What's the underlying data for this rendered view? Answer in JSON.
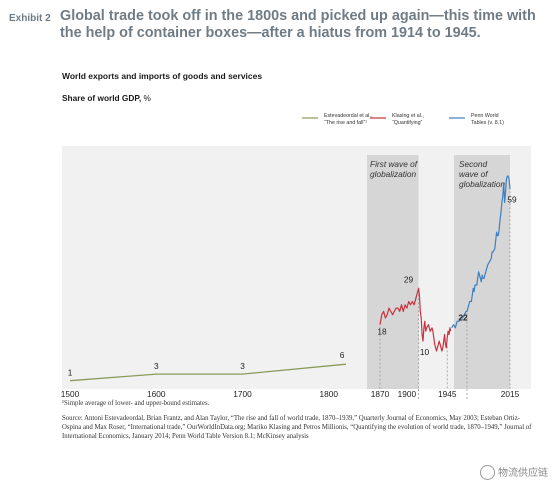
{
  "exhibit_label": "Exhibit 2",
  "headline": "Global trade took off in the 1800s and picked up again—this time with the help of container boxes—after a hiatus from 1914 to 1945.",
  "subhead": "World exports and imports of goods and services",
  "unit_label": "Share of world GDP,",
  "unit_suffix": "%",
  "footnote": "¹Simple average of lower- and upper-bound estimates.",
  "source": "Source: Antoni Estevadeordal, Brian Frantz, and Alan Taylor, “The rise and fall of world trade, 1870–1939,” Quarterly Journal of Economics, May 2003; Esteban Ortiz-Ospina and Max Roser, “International trade,” OurWorldInData.org; Mariko Klasing and Petros Millionis, “Quantifying the evolution of world trade, 1870–1949,” Journal of International Economics, January 2014; Penn World Table Version 8.1; McKinsey analysis",
  "watermark": "物流供应链",
  "colors": {
    "estevadeordal": "#8a9a5b",
    "klasing": "#c8323c",
    "penn": "#3f7fc1",
    "band": "#d6d6d6",
    "plot_bg": "#f1f1f1",
    "axis_text": "#222222",
    "title_gray": "#6f7c86"
  },
  "chart_data": {
    "type": "line",
    "xlabel": "",
    "ylabel": "",
    "x_ticks": [
      "1500",
      "1600",
      "1700",
      "1800",
      "1870",
      "1900",
      "1913",
      "1945",
      "1967",
      "2015"
    ],
    "highlight_tick": "1967",
    "shaded_periods": [
      {
        "label": "First wave of globalization",
        "start": 1870,
        "end": 1913
      },
      {
        "label": "Second wave of globalization",
        "start": 1967,
        "end": 2015
      }
    ],
    "legend": [
      {
        "series": "estevadeordal",
        "label": "Estevadeordal et al., “The rise and fall”¹"
      },
      {
        "series": "klasing",
        "label": "Klasing et al., “Quantifying”"
      },
      {
        "series": "penn",
        "label": "Penn World Tables (v. 8.1)"
      }
    ],
    "series": [
      {
        "key": "estevadeordal",
        "name": "Estevadeordal et al., “The rise and fall”¹",
        "x": [
          1500,
          1600,
          1700,
          1820
        ],
        "y": [
          1,
          3,
          3,
          6
        ]
      },
      {
        "key": "klasing",
        "name": "Klasing et al., “Quantifying”",
        "x": [
          1870,
          1872,
          1874,
          1876,
          1878,
          1880,
          1882,
          1884,
          1886,
          1888,
          1890,
          1892,
          1894,
          1896,
          1898,
          1900,
          1902,
          1904,
          1906,
          1908,
          1910,
          1911,
          1912,
          1913,
          1914,
          1915,
          1916,
          1917,
          1918,
          1919,
          1920,
          1921,
          1922,
          1924,
          1926,
          1928,
          1929,
          1930,
          1931,
          1932,
          1933,
          1934,
          1935,
          1936,
          1937,
          1938,
          1939,
          1940,
          1941,
          1942,
          1943,
          1944,
          1945,
          1946,
          1947,
          1948,
          1949
        ],
        "y": [
          18,
          21,
          22,
          20,
          21,
          23,
          22,
          21,
          22,
          23,
          23,
          22,
          24,
          22,
          24,
          23,
          25,
          24,
          25,
          24,
          26,
          27,
          28,
          29,
          27,
          22,
          20,
          15,
          13,
          17,
          19,
          16,
          17,
          18,
          16,
          17,
          16,
          14,
          12,
          11,
          10,
          11,
          12,
          13,
          12,
          11,
          10,
          11,
          13,
          15,
          12,
          11,
          14,
          16,
          15,
          17,
          16
        ]
      },
      {
        "key": "penn",
        "name": "Penn World Tables (v. 8.1)",
        "x": [
          1950,
          1952,
          1954,
          1956,
          1958,
          1960,
          1962,
          1964,
          1966,
          1967,
          1968,
          1970,
          1972,
          1974,
          1975,
          1976,
          1978,
          1980,
          1981,
          1982,
          1983,
          1984,
          1985,
          1986,
          1988,
          1990,
          1992,
          1994,
          1995,
          1996,
          1998,
          2000,
          2001,
          2002,
          2003,
          2004,
          2005,
          2006,
          2007,
          2008,
          2009,
          2010,
          2011,
          2012,
          2013,
          2014,
          2015
        ],
        "y": [
          17,
          18,
          17,
          19,
          19,
          20,
          20,
          21,
          22,
          22,
          23,
          25,
          25,
          29,
          28,
          30,
          30,
          34,
          33,
          32,
          31,
          33,
          32,
          32,
          34,
          36,
          37,
          38,
          40,
          40,
          41,
          46,
          45,
          45,
          47,
          50,
          52,
          55,
          57,
          61,
          55,
          58,
          62,
          63,
          63,
          62,
          59
        ]
      }
    ],
    "annotations": [
      {
        "text": "1",
        "x": 1500,
        "y": 1
      },
      {
        "text": "3",
        "x": 1600,
        "y": 3
      },
      {
        "text": "3",
        "x": 1700,
        "y": 3
      },
      {
        "text": "6",
        "x": 1820,
        "y": 6
      },
      {
        "text": "18",
        "x": 1870,
        "y": 18
      },
      {
        "text": "29",
        "x": 1913,
        "y": 29
      },
      {
        "text": "10",
        "x": 1933,
        "y": 10
      },
      {
        "text": "22",
        "x": 1967,
        "y": 22
      },
      {
        "text": "59",
        "x": 2015,
        "y": 59
      }
    ]
  }
}
